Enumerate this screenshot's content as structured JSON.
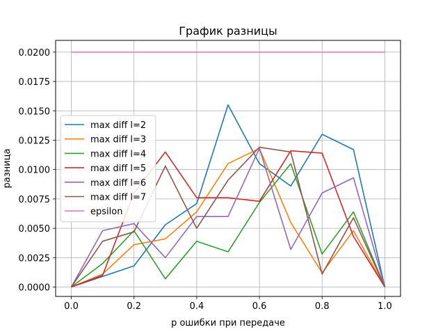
{
  "chart_data": {
    "type": "line",
    "title": "График разницы",
    "xlabel": "p ошибки при передаче",
    "ylabel": "разница",
    "xlim": [
      -0.05,
      1.05
    ],
    "ylim": [
      -0.0008,
      0.021
    ],
    "xticks": [
      0.0,
      0.2,
      0.4,
      0.6,
      0.8,
      1.0
    ],
    "xtick_labels": [
      "0.0",
      "0.2",
      "0.4",
      "0.6",
      "0.8",
      "1.0"
    ],
    "yticks": [
      0.0,
      0.0025,
      0.005,
      0.0075,
      0.01,
      0.0125,
      0.015,
      0.0175,
      0.02
    ],
    "ytick_labels": [
      "0.0000",
      "0.0025",
      "0.0050",
      "0.0075",
      "0.0100",
      "0.0125",
      "0.0150",
      "0.0175",
      "0.0200"
    ],
    "grid": true,
    "legend_position": "center-left",
    "x": [
      0.0,
      0.1,
      0.2,
      0.3,
      0.4,
      0.5,
      0.6,
      0.7,
      0.8,
      0.9,
      1.0
    ],
    "series": [
      {
        "name": "max diff l=2",
        "color": "#1f77b4",
        "values": [
          0.0,
          0.0009,
          0.0018,
          0.0053,
          0.0071,
          0.0155,
          0.0105,
          0.0086,
          0.013,
          0.0117,
          0.0
        ]
      },
      {
        "name": "max diff l=3",
        "color": "#ff7f0e",
        "values": [
          0.0,
          0.0011,
          0.0036,
          0.0041,
          0.0064,
          0.0105,
          0.0118,
          0.0055,
          0.0012,
          0.0048,
          0.0
        ]
      },
      {
        "name": "max diff l=4",
        "color": "#2ca02c",
        "values": [
          0.0,
          0.002,
          0.0048,
          0.0007,
          0.0039,
          0.003,
          0.0072,
          0.0105,
          0.0028,
          0.0064,
          0.0
        ]
      },
      {
        "name": "max diff l=5",
        "color": "#d62728",
        "values": [
          0.0,
          0.001,
          0.008,
          0.0115,
          0.0076,
          0.0076,
          0.0073,
          0.0116,
          0.0114,
          0.0043,
          0.0
        ]
      },
      {
        "name": "max diff l=6",
        "color": "#9467bd",
        "values": [
          0.0,
          0.0048,
          0.0054,
          0.0025,
          0.006,
          0.006,
          0.0118,
          0.0032,
          0.008,
          0.0093,
          0.0
        ]
      },
      {
        "name": "max diff l=7",
        "color": "#8c564b",
        "values": [
          0.0,
          0.0039,
          0.0047,
          0.0103,
          0.005,
          0.0091,
          0.0119,
          0.0115,
          0.0011,
          0.0059,
          0.0
        ]
      },
      {
        "name": "epsilon",
        "color": "#e377c2",
        "values": [
          0.02,
          0.02,
          0.02,
          0.02,
          0.02,
          0.02,
          0.02,
          0.02,
          0.02,
          0.02,
          0.02
        ]
      }
    ]
  }
}
